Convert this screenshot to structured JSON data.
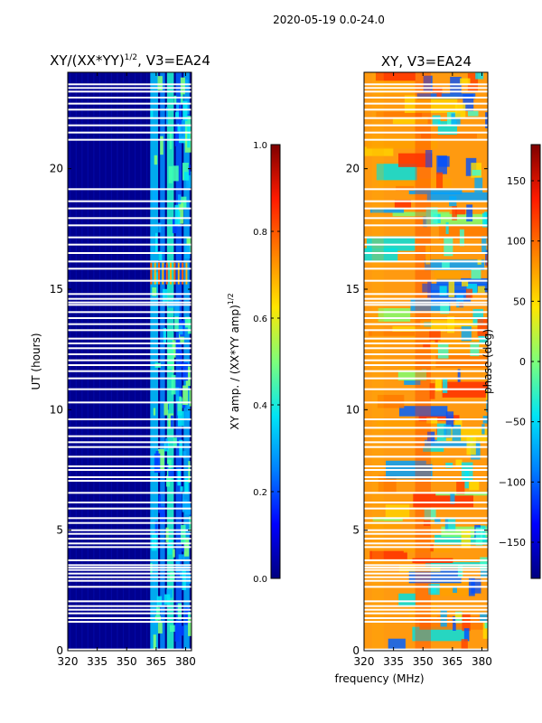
{
  "figure": {
    "suptitle": "2020-05-19 0.0-24.0",
    "shared_xlabel": "frequency (MHz)"
  },
  "colormap": {
    "name": "jet",
    "stops": [
      "#00007f",
      "#0000ff",
      "#0080ff",
      "#00e5f5",
      "#7dff7a",
      "#ffe600",
      "#ff8000",
      "#ff1a00",
      "#7f0000"
    ]
  },
  "chart_data": [
    {
      "type": "heatmap",
      "title_prefix": "XY/(XX*YY)",
      "title_exponent": "1/2",
      "title_suffix": ", V3=EA24",
      "xlabel": "",
      "ylabel": "UT (hours)",
      "xlim": [
        320,
        383
      ],
      "ylim": [
        0,
        24
      ],
      "xticks": [
        320,
        335,
        350,
        365,
        380
      ],
      "yticks": [
        0,
        5,
        10,
        15,
        20
      ],
      "colorbar": {
        "label_text": "XY amp. / (XX*YY amp)",
        "label_exponent": "1/2",
        "range": [
          0.0,
          1.0
        ],
        "ticks": [
          0.0,
          0.2,
          0.4,
          0.6,
          0.8,
          1.0
        ],
        "tick_labels": [
          "0.0",
          "0.2",
          "0.4",
          "0.6",
          "0.8",
          "1.0"
        ]
      },
      "flagged_rows_ut": [
        0.05,
        1.2,
        1.35,
        1.55,
        1.7,
        1.85,
        2.05,
        2.65,
        2.9,
        3.05,
        3.2,
        3.35,
        3.45,
        3.55,
        3.75,
        4.3,
        4.45,
        4.65,
        4.85,
        5.0,
        5.3,
        5.5,
        5.9,
        6.15,
        6.55,
        7.05,
        7.2,
        7.5,
        7.65,
        8.05,
        8.45,
        8.65,
        8.9,
        9.25,
        9.6,
        10.3,
        10.85,
        11.3,
        11.6,
        11.85,
        12.05,
        12.3,
        12.55,
        12.75,
        12.95,
        13.3,
        13.55,
        13.8,
        14.05,
        14.35,
        14.45,
        14.6,
        14.8,
        15.35,
        15.85,
        16.15,
        16.5,
        16.85,
        17.15,
        17.65,
        17.95,
        18.35,
        18.65,
        19.15,
        21.2,
        21.5,
        21.8,
        22.1,
        22.45,
        22.7,
        22.95,
        23.2,
        23.35,
        23.5
      ]
    },
    {
      "type": "heatmap",
      "title": "XY, V3=EA24",
      "xlabel": "",
      "ylabel": "",
      "xlim": [
        320,
        383
      ],
      "ylim": [
        0,
        24
      ],
      "xticks": [
        320,
        335,
        350,
        365,
        380
      ],
      "yticks": [
        0,
        5,
        10,
        15,
        20
      ],
      "colorbar": {
        "label_text": "phase (deg)",
        "range": [
          -180,
          180
        ],
        "ticks": [
          -150,
          -100,
          -50,
          0,
          50,
          100,
          150
        ],
        "tick_labels": [
          "−150",
          "−100",
          "−50",
          "0",
          "50",
          "100",
          "150"
        ]
      },
      "flagged_rows_ut": [
        0.05,
        1.2,
        1.35,
        1.55,
        1.7,
        1.85,
        2.05,
        2.65,
        2.9,
        3.05,
        3.2,
        3.35,
        3.45,
        3.55,
        3.75,
        4.3,
        4.45,
        4.65,
        4.85,
        5.0,
        5.3,
        5.5,
        5.9,
        6.15,
        6.55,
        7.05,
        7.2,
        7.5,
        7.65,
        8.05,
        8.45,
        8.65,
        8.9,
        9.25,
        9.6,
        10.3,
        10.85,
        11.3,
        11.6,
        11.85,
        12.05,
        12.3,
        12.55,
        12.75,
        12.95,
        13.3,
        13.55,
        13.8,
        14.05,
        14.35,
        14.45,
        14.6,
        14.8,
        15.35,
        15.85,
        16.15,
        16.5,
        16.85,
        17.15,
        17.65,
        17.95,
        18.35,
        18.65,
        19.15,
        21.2,
        21.5,
        21.8,
        22.1,
        22.45,
        22.7,
        22.95,
        23.2,
        23.35,
        23.5
      ]
    }
  ]
}
